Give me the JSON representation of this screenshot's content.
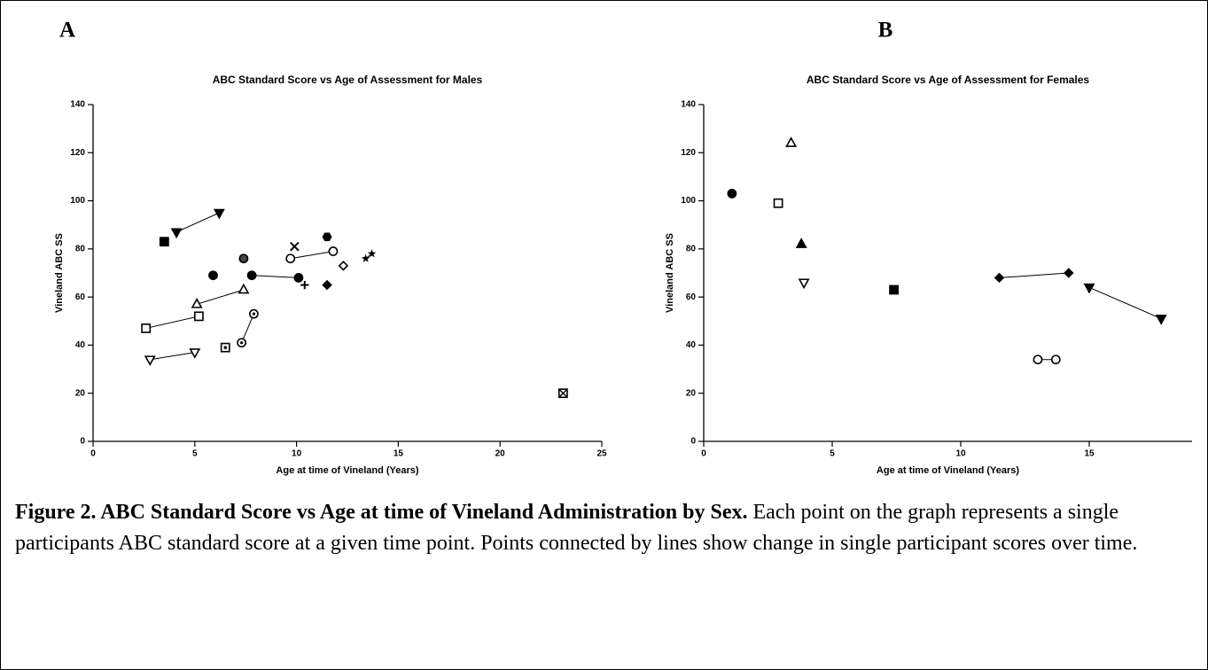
{
  "chart_data": [
    {
      "type": "scatter",
      "label": "A",
      "title": "ABC Standard Score vs Age of Assessment for Males",
      "xlabel": "Age at time of Vineland  (Years)",
      "ylabel": "Vineland ABC SS",
      "xlim": [
        0,
        25
      ],
      "xticks": [
        0,
        5,
        10,
        15,
        20,
        25
      ],
      "ylim": [
        0,
        140
      ],
      "yticks": [
        0,
        20,
        40,
        60,
        80,
        100,
        120,
        140
      ],
      "color": "#000000",
      "series": [
        {
          "marker": "triangle-down",
          "x": [
            4.1,
            6.2
          ],
          "values": [
            87,
            95
          ]
        },
        {
          "marker": "square",
          "x": [
            3.5
          ],
          "values": [
            83
          ]
        },
        {
          "marker": "circle",
          "x": [
            5.9
          ],
          "values": [
            69
          ]
        },
        {
          "marker": "circle",
          "x": [
            7.8,
            10.1
          ],
          "values": [
            69,
            68
          ]
        },
        {
          "marker": "circle-hatch",
          "x": [
            7.4
          ],
          "values": [
            76
          ]
        },
        {
          "marker": "circle-open",
          "x": [
            9.7,
            11.8
          ],
          "values": [
            76,
            79
          ]
        },
        {
          "marker": "cross-x",
          "x": [
            9.9
          ],
          "values": [
            81
          ]
        },
        {
          "marker": "hexagon",
          "x": [
            11.5
          ],
          "values": [
            85
          ]
        },
        {
          "marker": "diamond-open",
          "x": [
            12.3
          ],
          "values": [
            73
          ]
        },
        {
          "marker": "star",
          "x": [
            13.4,
            13.7
          ],
          "values": [
            76,
            78
          ]
        },
        {
          "marker": "plus",
          "x": [
            10.4
          ],
          "values": [
            65
          ]
        },
        {
          "marker": "diamond",
          "x": [
            11.5
          ],
          "values": [
            65
          ]
        },
        {
          "marker": "triangle-up-open",
          "x": [
            5.1,
            7.4
          ],
          "values": [
            57,
            63
          ]
        },
        {
          "marker": "square-open",
          "x": [
            2.6,
            5.2
          ],
          "values": [
            47,
            52
          ]
        },
        {
          "marker": "square-dot",
          "x": [
            6.5
          ],
          "values": [
            39
          ]
        },
        {
          "marker": "circle-dot",
          "x": [
            7.3,
            7.9
          ],
          "values": [
            41,
            53
          ]
        },
        {
          "marker": "triangle-down-open",
          "x": [
            2.8,
            5.0
          ],
          "values": [
            34,
            37
          ]
        },
        {
          "marker": "square-x",
          "x": [
            23.1
          ],
          "values": [
            20
          ]
        }
      ]
    },
    {
      "type": "scatter",
      "label": "B",
      "title": "ABC Standard Score vs Age of Assessment for Females",
      "xlabel": "Age at time of Vineland  (Years)",
      "ylabel": "Vineland ABC SS",
      "xlim": [
        0,
        19
      ],
      "xticks": [
        0,
        5,
        10,
        15
      ],
      "ylim": [
        0,
        140
      ],
      "yticks": [
        0,
        20,
        40,
        60,
        80,
        100,
        120,
        140
      ],
      "color": "#000000",
      "series": [
        {
          "marker": "circle",
          "x": [
            1.1
          ],
          "values": [
            103
          ]
        },
        {
          "marker": "square-open",
          "x": [
            2.9
          ],
          "values": [
            99
          ]
        },
        {
          "marker": "triangle-up-open",
          "x": [
            3.4
          ],
          "values": [
            124
          ]
        },
        {
          "marker": "triangle-up",
          "x": [
            3.8
          ],
          "values": [
            82
          ]
        },
        {
          "marker": "triangle-down-open",
          "x": [
            3.9
          ],
          "values": [
            66
          ]
        },
        {
          "marker": "square",
          "x": [
            7.4
          ],
          "values": [
            63
          ]
        },
        {
          "marker": "diamond",
          "x": [
            11.5,
            14.2
          ],
          "values": [
            68,
            70
          ]
        },
        {
          "marker": "triangle-down",
          "x": [
            15.0,
            17.8
          ],
          "values": [
            64,
            51
          ]
        },
        {
          "marker": "circle-open",
          "x": [
            13.0,
            13.7
          ],
          "values": [
            34,
            34
          ]
        }
      ]
    }
  ],
  "caption": {
    "title": "Figure 2. ABC Standard Score vs Age at time of Vineland Administration by Sex.",
    "text": "Each point on the graph represents a single participants ABC standard score at a given time point. Points connected by lines show change in single participant scores over time."
  }
}
